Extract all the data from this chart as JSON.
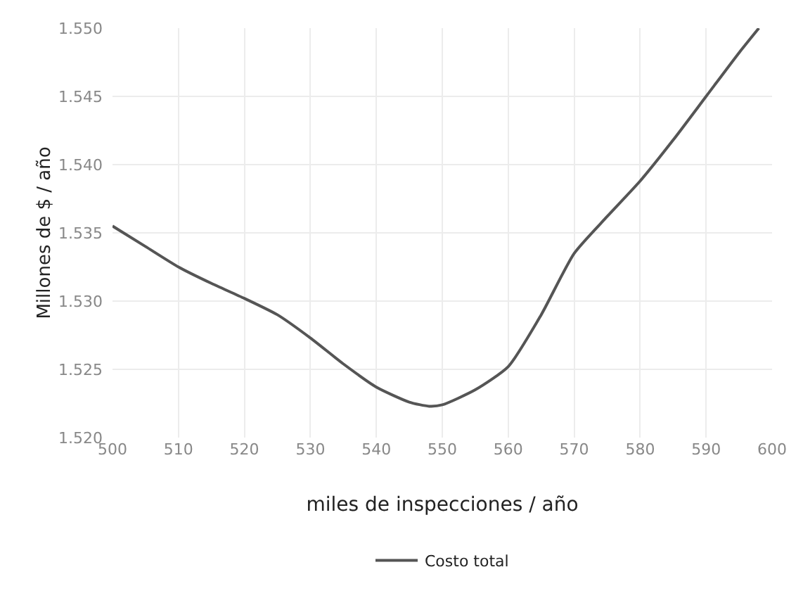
{
  "chart_data": {
    "type": "line",
    "xlabel": "miles de inspecciones / año",
    "ylabel": "Millones de $ / año",
    "x": [
      500,
      505,
      510,
      515,
      520,
      525,
      530,
      535,
      540,
      545,
      548,
      550,
      555,
      560,
      565,
      570,
      575,
      580,
      585,
      590,
      595,
      598
    ],
    "series": [
      {
        "name": "Costo total",
        "color": "#555555",
        "values": [
          1.5355,
          1.534,
          1.5325,
          1.5313,
          1.5302,
          1.529,
          1.5273,
          1.5254,
          1.5237,
          1.5226,
          1.5223,
          1.5224,
          1.5235,
          1.5252,
          1.529,
          1.5335,
          1.5362,
          1.5388,
          1.5418,
          1.545,
          1.5482,
          1.55
        ]
      }
    ],
    "xlim": [
      500,
      600
    ],
    "xticks": [
      500,
      510,
      520,
      530,
      540,
      550,
      560,
      570,
      580,
      590,
      600
    ],
    "ylim": [
      1.52,
      1.55
    ],
    "yticks": [
      {
        "value": 1.52,
        "label": "1.520"
      },
      {
        "value": 1.525,
        "label": "1.525"
      },
      {
        "value": 1.53,
        "label": "1.530"
      },
      {
        "value": 1.535,
        "label": "1.535"
      },
      {
        "value": 1.54,
        "label": "1.540"
      },
      {
        "value": 1.545,
        "label": "1.545"
      },
      {
        "value": 1.55,
        "label": "1.550"
      }
    ],
    "grid": true,
    "legend": "bottom",
    "marker": "none",
    "line_style": "solid"
  }
}
